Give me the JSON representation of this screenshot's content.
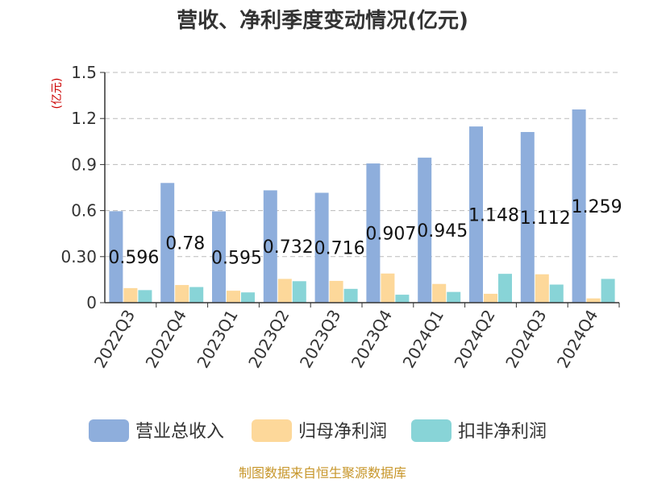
{
  "chart_data": {
    "type": "bar",
    "title": "营收、净利季度变动情况(亿元)",
    "unit_label": "(亿元)",
    "categories": [
      "2022Q3",
      "2022Q4",
      "2023Q1",
      "2023Q2",
      "2023Q3",
      "2023Q4",
      "2024Q1",
      "2024Q2",
      "2024Q3",
      "2024Q4"
    ],
    "series": [
      {
        "name": "营业总收入",
        "color": "#8eaedc",
        "values": [
          0.596,
          0.78,
          0.595,
          0.732,
          0.716,
          0.907,
          0.945,
          1.148,
          1.112,
          1.259
        ],
        "show_labels": true
      },
      {
        "name": "归母净利润",
        "color": "#fdd89a",
        "values": [
          0.095,
          0.115,
          0.078,
          0.155,
          0.142,
          0.19,
          0.122,
          0.058,
          0.185,
          0.028
        ],
        "show_labels": false
      },
      {
        "name": "扣非净利润",
        "color": "#88d4d7",
        "values": [
          0.082,
          0.102,
          0.067,
          0.14,
          0.09,
          0.052,
          0.07,
          0.188,
          0.118,
          0.155
        ],
        "show_labels": false
      }
    ],
    "yticks": [
      "0",
      "0.30",
      "0.6",
      "0.9",
      "1.2",
      "1.5"
    ],
    "ylim": [
      0,
      1.5
    ],
    "grid": true,
    "legend_position": "bottom",
    "source": "制图数据来自恒生聚源数据库"
  }
}
